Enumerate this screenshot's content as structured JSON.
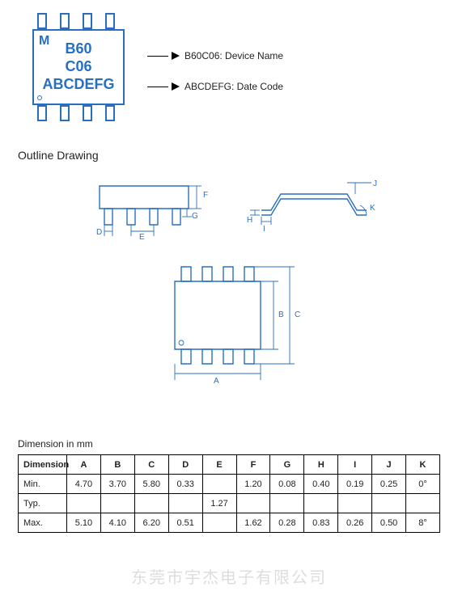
{
  "marking": {
    "line1": "B60",
    "line2": "C06",
    "line3": "ABCDEFG",
    "callout_device": "B60C06: Device Name",
    "callout_date": "ABCDEFG: Date Code"
  },
  "section_title": "Outline Drawing",
  "outline": {
    "color": "#2a6fbf",
    "dim_labels": [
      "A",
      "B",
      "C",
      "D",
      "E",
      "F",
      "G",
      "H",
      "I",
      "J",
      "K"
    ]
  },
  "table": {
    "title": "Dimension in mm",
    "header": [
      "Dimension",
      "A",
      "B",
      "C",
      "D",
      "E",
      "F",
      "G",
      "H",
      "I",
      "J",
      "K"
    ],
    "rows": [
      {
        "label": "Min.",
        "cells": [
          "4.70",
          "3.70",
          "5.80",
          "0.33",
          "",
          "1.20",
          "0.08",
          "0.40",
          "0.19",
          "0.25",
          "0°"
        ]
      },
      {
        "label": "Typ.",
        "cells": [
          "",
          "",
          "",
          "",
          "1.27",
          "",
          "",
          "",
          "",
          "",
          ""
        ]
      },
      {
        "label": "Max.",
        "cells": [
          "5.10",
          "4.10",
          "6.20",
          "0.51",
          "",
          "1.62",
          "0.28",
          "0.83",
          "0.26",
          "0.50",
          "8°"
        ]
      }
    ]
  },
  "watermark": "东莞市宇杰电子有限公司"
}
